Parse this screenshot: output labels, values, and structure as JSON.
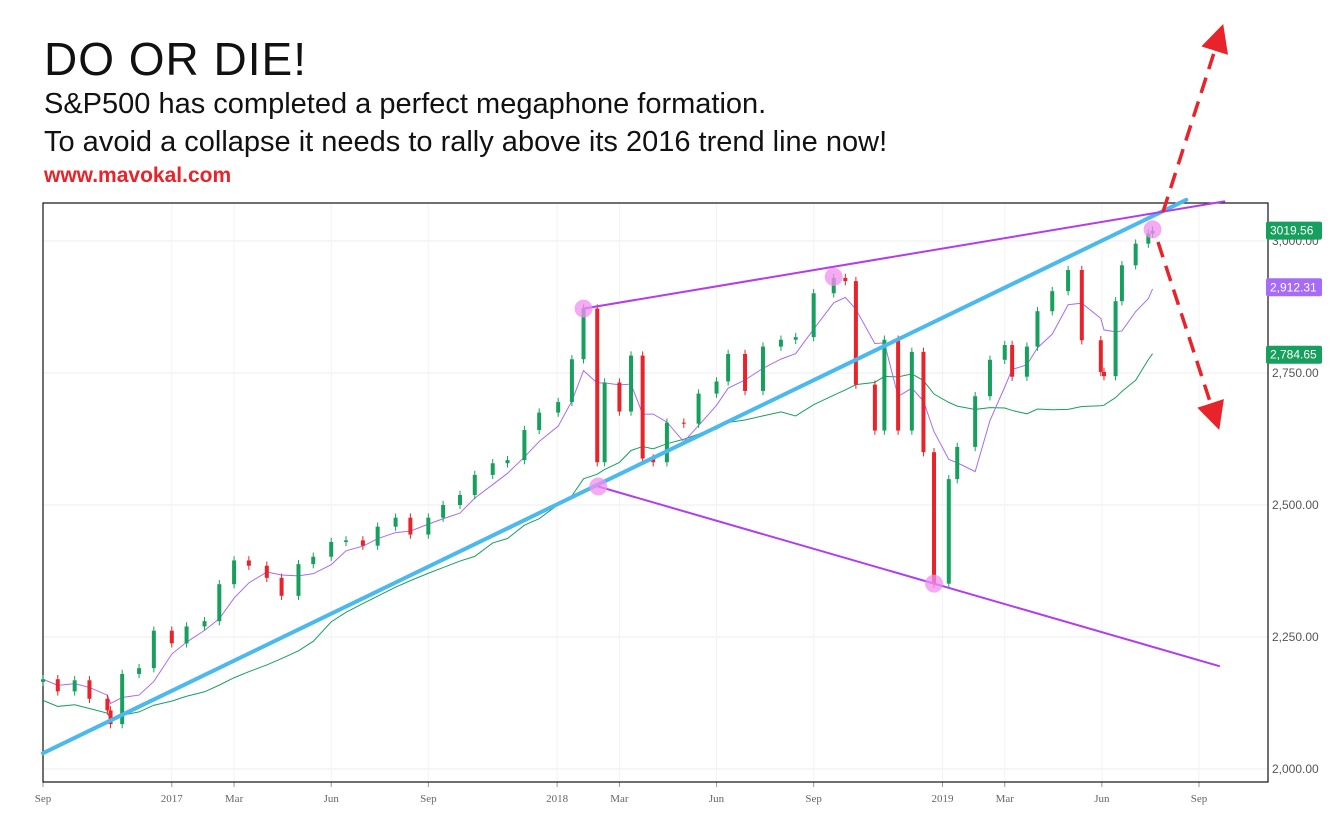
{
  "header": {
    "title": "DO OR DIE!",
    "line1": "S&P500 has completed a perfect megaphone formation.",
    "line2": "To avoid a collapse it needs to rally above its 2016 trend line now!",
    "website": "www.mavokal.com"
  },
  "chart_data": {
    "type": "candlestick",
    "title": "",
    "xlabel": "",
    "ylabel": "",
    "ylim": [
      2000,
      3000
    ],
    "grid": true,
    "y_ticks": [
      "2,000.00",
      "2,250.00",
      "2,500.00",
      "2,750.00",
      "3,000.00"
    ],
    "y_tick_values": [
      2000,
      2250,
      2500,
      2750,
      3000
    ],
    "x_ticks": [
      {
        "label": "Sep",
        "date": "2016-09-01"
      },
      {
        "label": "2017",
        "date": "2017-01-01"
      },
      {
        "label": "Mar",
        "date": "2017-03-01"
      },
      {
        "label": "Jun",
        "date": "2017-06-01"
      },
      {
        "label": "Sep",
        "date": "2017-09-01"
      },
      {
        "label": "2018",
        "date": "2018-01-01"
      },
      {
        "label": "Mar",
        "date": "2018-03-01"
      },
      {
        "label": "Jun",
        "date": "2018-06-01"
      },
      {
        "label": "Sep",
        "date": "2018-09-01"
      },
      {
        "label": "2019",
        "date": "2019-01-01"
      },
      {
        "label": "Mar",
        "date": "2019-03-01"
      },
      {
        "label": "Jun",
        "date": "2019-06-01"
      },
      {
        "label": "Sep",
        "date": "2019-09-01"
      }
    ],
    "price_labels": [
      {
        "text": "3019.56",
        "value": 3019.56,
        "color": "#17a05d"
      },
      {
        "text": "2,912.31",
        "value": 2912.31,
        "color": "#a66cf5"
      },
      {
        "text": "2,784.65",
        "value": 2784.65,
        "color": "#17a05d"
      }
    ],
    "series": [
      [
        "2016-09-01",
        2170
      ],
      [
        "2016-09-15",
        2147
      ],
      [
        "2016-10-01",
        2168
      ],
      [
        "2016-10-15",
        2133
      ],
      [
        "2016-11-01",
        2111
      ],
      [
        "2016-11-04",
        2085
      ],
      [
        "2016-11-15",
        2180
      ],
      [
        "2016-12-01",
        2191
      ],
      [
        "2016-12-15",
        2262
      ],
      [
        "2017-01-01",
        2238
      ],
      [
        "2017-01-15",
        2270
      ],
      [
        "2017-02-01",
        2280
      ],
      [
        "2017-02-15",
        2350
      ],
      [
        "2017-03-01",
        2395
      ],
      [
        "2017-03-15",
        2385
      ],
      [
        "2017-04-01",
        2362
      ],
      [
        "2017-04-15",
        2328
      ],
      [
        "2017-05-01",
        2388
      ],
      [
        "2017-05-15",
        2402
      ],
      [
        "2017-06-01",
        2430
      ],
      [
        "2017-06-15",
        2433
      ],
      [
        "2017-07-01",
        2423
      ],
      [
        "2017-07-15",
        2459
      ],
      [
        "2017-08-01",
        2476
      ],
      [
        "2017-08-15",
        2444
      ],
      [
        "2017-09-01",
        2476
      ],
      [
        "2017-09-15",
        2500
      ],
      [
        "2017-10-01",
        2519
      ],
      [
        "2017-10-15",
        2557
      ],
      [
        "2017-11-01",
        2579
      ],
      [
        "2017-11-15",
        2585
      ],
      [
        "2017-12-01",
        2642
      ],
      [
        "2017-12-15",
        2675
      ],
      [
        "2018-01-02",
        2695
      ],
      [
        "2018-01-15",
        2776
      ],
      [
        "2018-01-26",
        2872
      ],
      [
        "2018-02-08",
        2581
      ],
      [
        "2018-02-15",
        2732
      ],
      [
        "2018-03-01",
        2677
      ],
      [
        "2018-03-12",
        2783
      ],
      [
        "2018-03-23",
        2588
      ],
      [
        "2018-04-02",
        2581
      ],
      [
        "2018-04-15",
        2656
      ],
      [
        "2018-05-01",
        2654
      ],
      [
        "2018-05-15",
        2711
      ],
      [
        "2018-06-01",
        2734
      ],
      [
        "2018-06-12",
        2786
      ],
      [
        "2018-06-28",
        2716
      ],
      [
        "2018-07-15",
        2800
      ],
      [
        "2018-08-01",
        2813
      ],
      [
        "2018-08-15",
        2818
      ],
      [
        "2018-09-01",
        2901
      ],
      [
        "2018-09-20",
        2930
      ],
      [
        "2018-10-01",
        2924
      ],
      [
        "2018-10-11",
        2728
      ],
      [
        "2018-10-29",
        2641
      ],
      [
        "2018-11-07",
        2813
      ],
      [
        "2018-11-20",
        2641
      ],
      [
        "2018-12-03",
        2790
      ],
      [
        "2018-12-14",
        2600
      ],
      [
        "2018-12-24",
        2351
      ],
      [
        "2019-01-07",
        2549
      ],
      [
        "2019-01-15",
        2610
      ],
      [
        "2019-02-01",
        2706
      ],
      [
        "2019-02-15",
        2775
      ],
      [
        "2019-03-01",
        2803
      ],
      [
        "2019-03-08",
        2743
      ],
      [
        "2019-03-22",
        2800
      ],
      [
        "2019-04-01",
        2867
      ],
      [
        "2019-04-15",
        2905
      ],
      [
        "2019-04-30",
        2945
      ],
      [
        "2019-05-13",
        2812
      ],
      [
        "2019-05-31",
        2752
      ],
      [
        "2019-06-03",
        2744
      ],
      [
        "2019-06-14",
        2886
      ],
      [
        "2019-06-20",
        2954
      ],
      [
        "2019-07-03",
        2995
      ],
      [
        "2019-07-15",
        3014
      ],
      [
        "2019-07-19",
        3019.56
      ]
    ],
    "trend_lines": [
      {
        "color": "#4bb8ee",
        "from": [
          "2016-09-01",
          2030
        ],
        "to": [
          "2019-08-20",
          3078
        ]
      },
      {
        "color": "#b13cf0",
        "from": [
          "2018-01-26",
          2872
        ],
        "to": [
          "2019-09-25",
          3075
        ]
      },
      {
        "color": "#b13cf0",
        "from": [
          "2018-02-09",
          2535
        ],
        "to": [
          "2019-09-20",
          2195
        ]
      }
    ],
    "pivots": [
      [
        "2018-01-26",
        2872
      ],
      [
        "2018-02-09",
        2535
      ],
      [
        "2018-09-20",
        2932
      ],
      [
        "2018-12-24",
        2351
      ],
      [
        "2019-07-19",
        3022
      ]
    ],
    "colors": {
      "up": "#17a05d",
      "down": "#e8232a",
      "ma50": "#a66cf5",
      "ma200": "#17a05d",
      "pivot": "#f28ff0",
      "arrow": "#e8232a"
    }
  }
}
